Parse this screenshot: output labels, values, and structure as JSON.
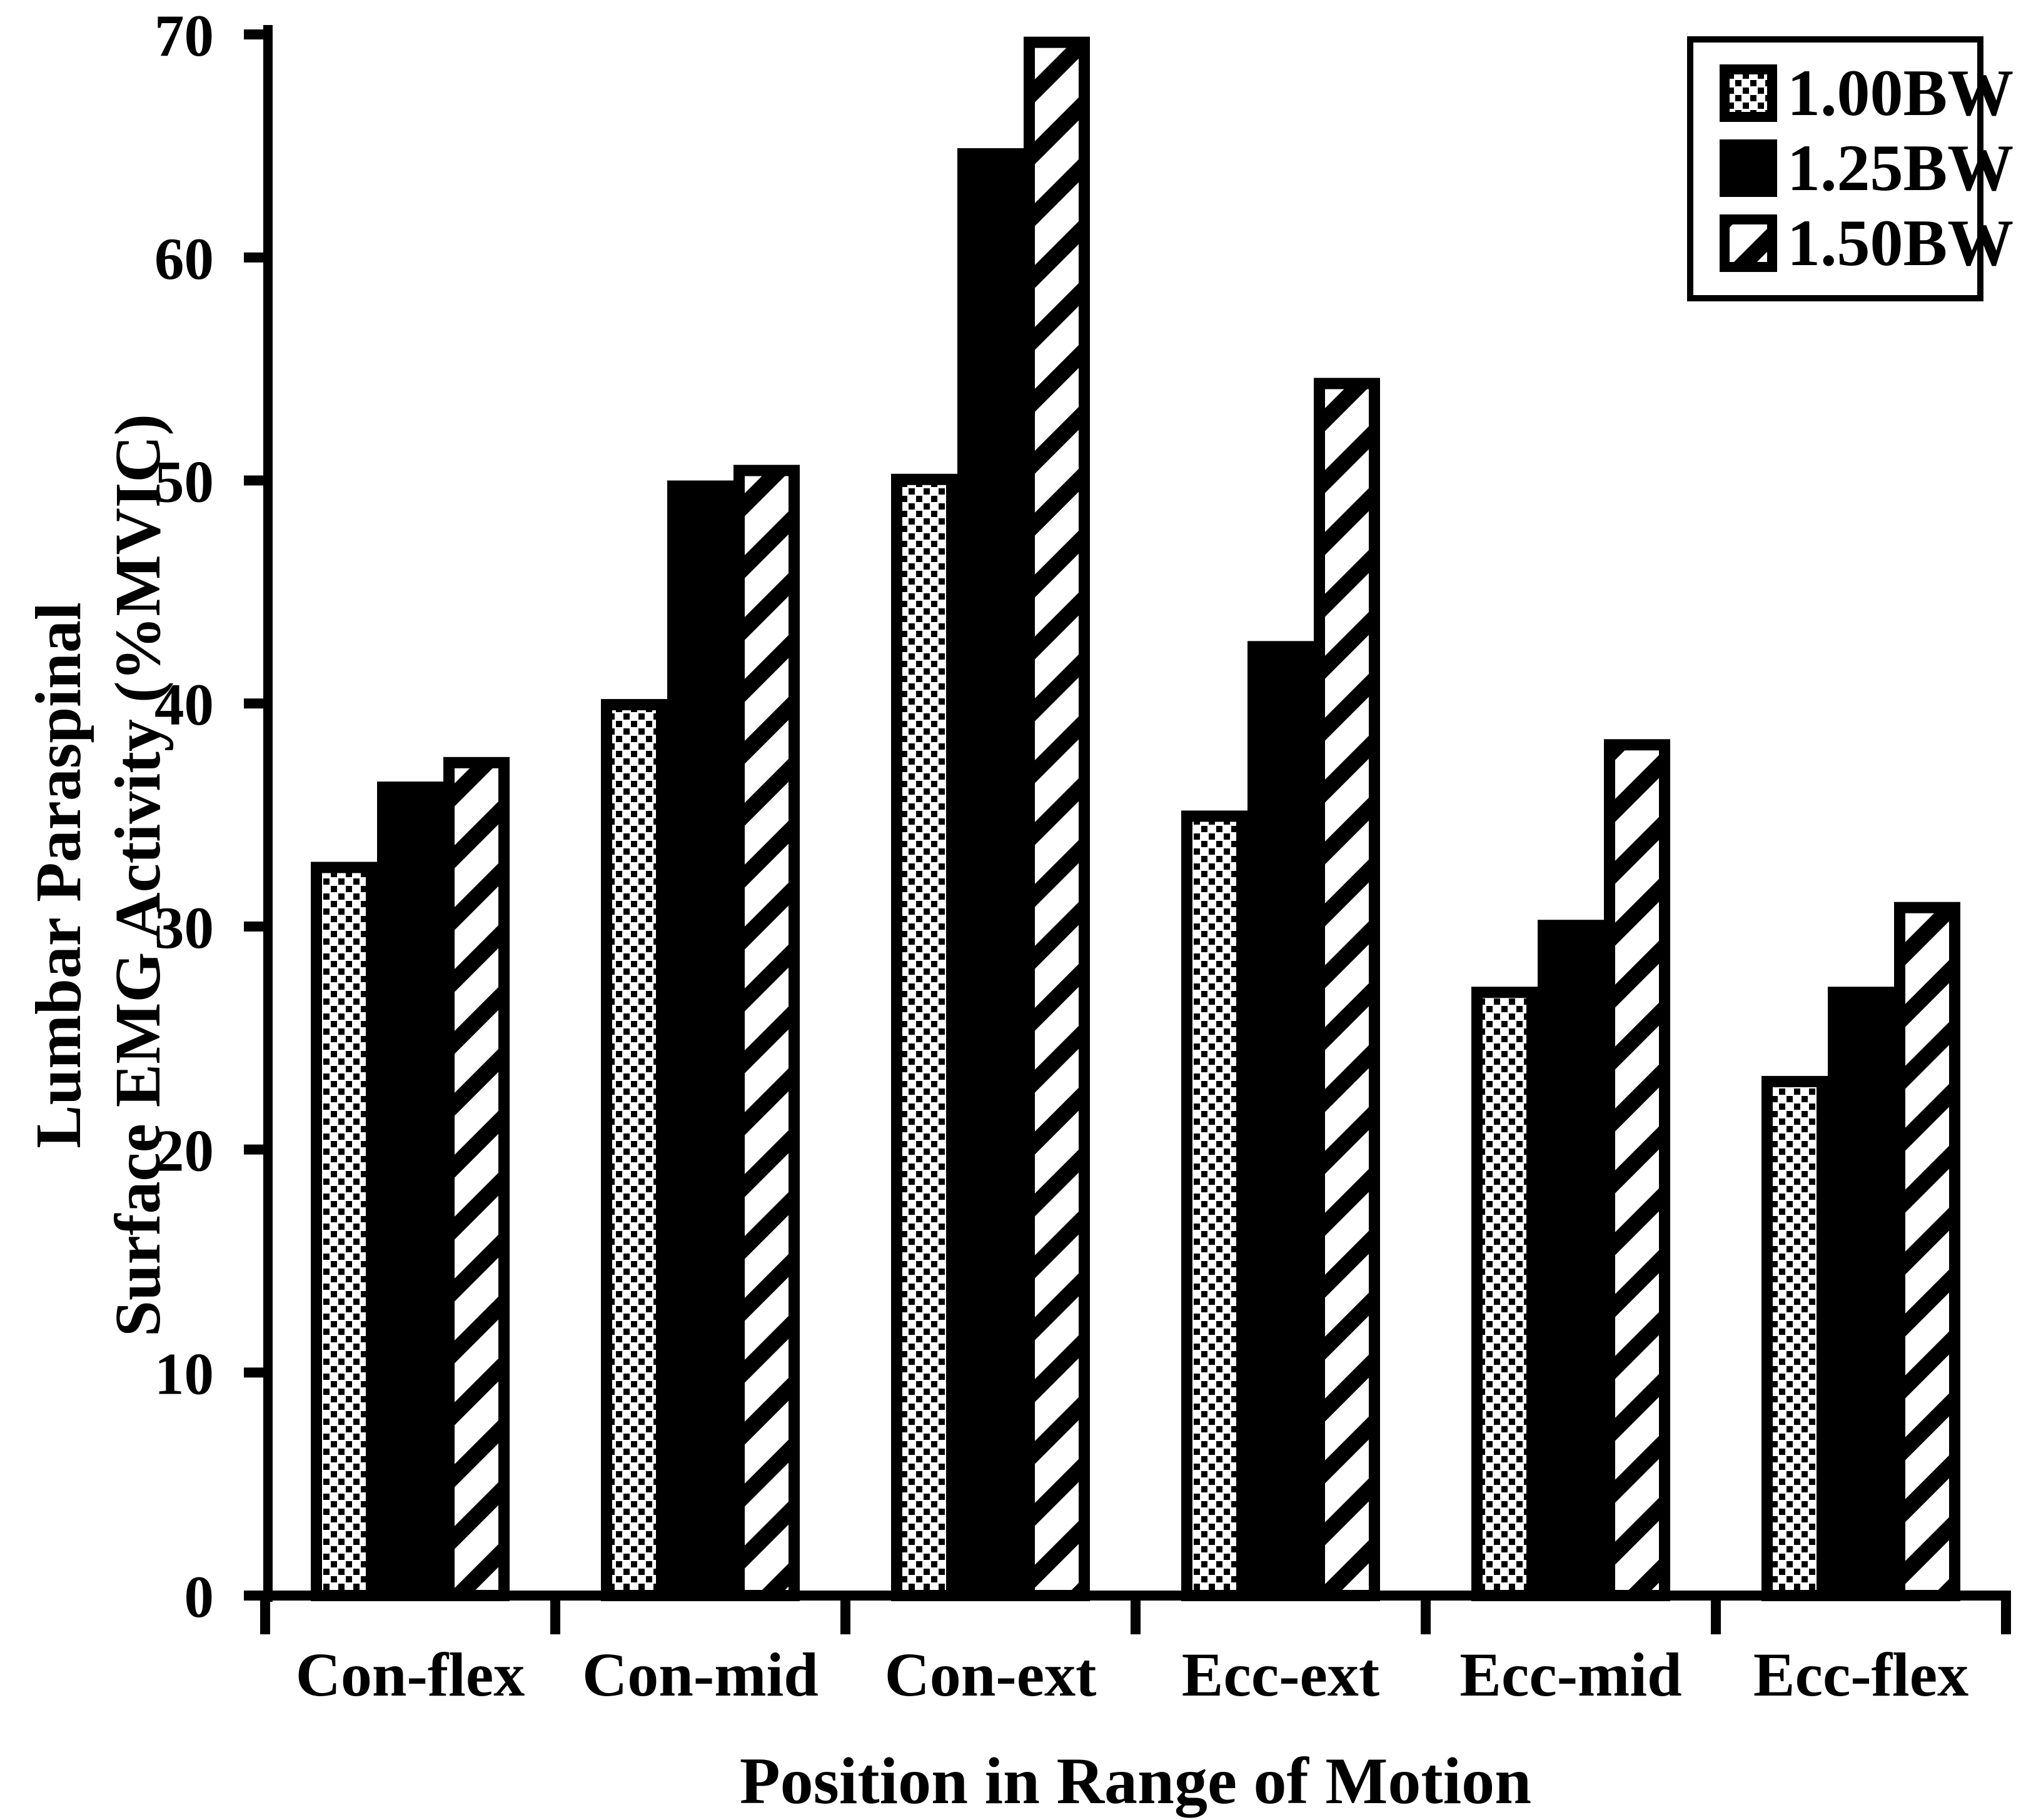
{
  "figure": {
    "x_axis_title": "Position in Range of Motion",
    "y_axis_title_line1": "Lumbar Paraspinal",
    "y_axis_title_line2": "Surface EMG Activity (%MVIC)"
  },
  "chart_data": {
    "type": "bar",
    "title": "",
    "xlabel": "Position in Range of Motion",
    "ylabel": "Lumbar Paraspinal Surface EMG Activity (%MVIC)",
    "categories": [
      "Con-flex",
      "Con-mid",
      "Con-ext",
      "Ecc-ext",
      "Ecc-mid",
      "Ecc-flex"
    ],
    "series": [
      {
        "name": "1.00BW",
        "fill_style": "dots",
        "values": [
          32.9,
          40.2,
          50.3,
          35.2,
          27.3,
          23.3
        ]
      },
      {
        "name": "1.25BW",
        "fill_style": "solid",
        "values": [
          36.5,
          50.0,
          64.9,
          42.8,
          30.3,
          27.3
        ]
      },
      {
        "name": "1.50BW",
        "fill_style": "hatch",
        "values": [
          37.6,
          50.7,
          69.9,
          54.6,
          38.4,
          31.1
        ]
      }
    ],
    "ylim": [
      0,
      70
    ],
    "yticks": [
      0,
      10,
      20,
      30,
      40,
      50,
      60,
      70
    ],
    "grid": false,
    "legend_position": "top-right",
    "bar_color": "#000000",
    "background": "#ffffff"
  }
}
